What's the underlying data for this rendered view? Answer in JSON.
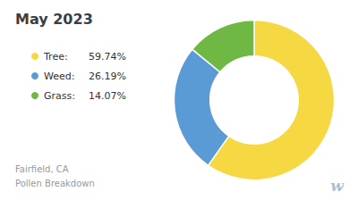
{
  "chart_data": {
    "type": "pie",
    "title": "May 2023",
    "subtitle": [
      "Fairfield, CA",
      "Pollen Breakdown"
    ],
    "categories": [
      "Tree:",
      "Weed:",
      "Grass:"
    ],
    "values": [
      59.74,
      26.19,
      14.07
    ],
    "value_labels": [
      "59.74%",
      "26.19%",
      "14.07%"
    ],
    "colors": [
      "#f5d842",
      "#5b9bd5",
      "#70b844"
    ],
    "legend": "left",
    "data_labels": false,
    "annotations": [
      "w"
    ]
  }
}
